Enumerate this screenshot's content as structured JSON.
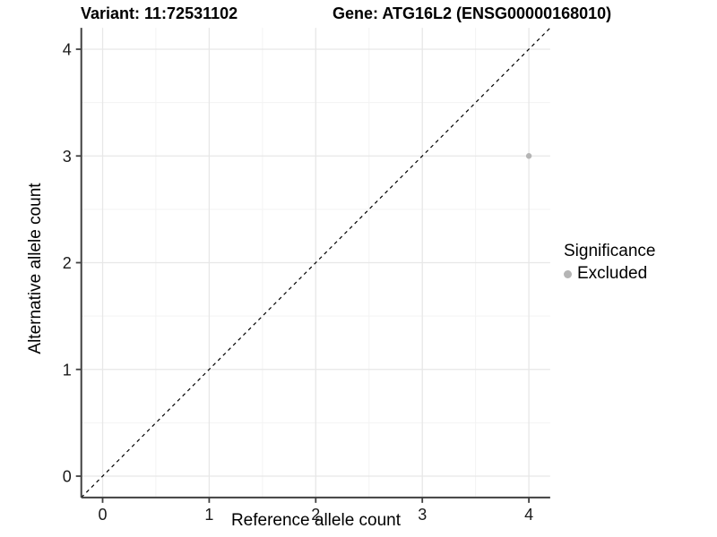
{
  "chart": {
    "title_variant": "Variant: 11:72531102",
    "title_gene": "Gene: ATG16L2 (ENSG00000168010)"
  },
  "chart_data": {
    "type": "scatter",
    "title": "Variant: 11:72531102    Gene: ATG16L2 (ENSG00000168010)",
    "xlabel": "Reference allele count",
    "ylabel": "Alternative allele count",
    "xlim": [
      -0.2,
      4.2
    ],
    "ylim": [
      -0.2,
      4.2
    ],
    "x_ticks": [
      0,
      1,
      2,
      3,
      4
    ],
    "y_ticks": [
      0,
      1,
      2,
      3,
      4
    ],
    "minor_ticks": [
      0.5,
      1.5,
      2.5,
      3.5
    ],
    "grid": true,
    "points": [
      {
        "x": 4,
        "y": 3,
        "series": "Excluded"
      }
    ],
    "reference_line": {
      "kind": "identity",
      "style": "dashed",
      "color": "#000000"
    },
    "legend": {
      "title": "Significance",
      "position": "right",
      "items": [
        {
          "label": "Excluded",
          "color": "#b5b5b5"
        }
      ]
    },
    "colors": {
      "point": "#b5b5b5",
      "grid_major": "#e7e7e7",
      "grid_minor": "#f3f3f3",
      "axis_line": "#404040",
      "tick_text": "#1a1a1a"
    }
  }
}
